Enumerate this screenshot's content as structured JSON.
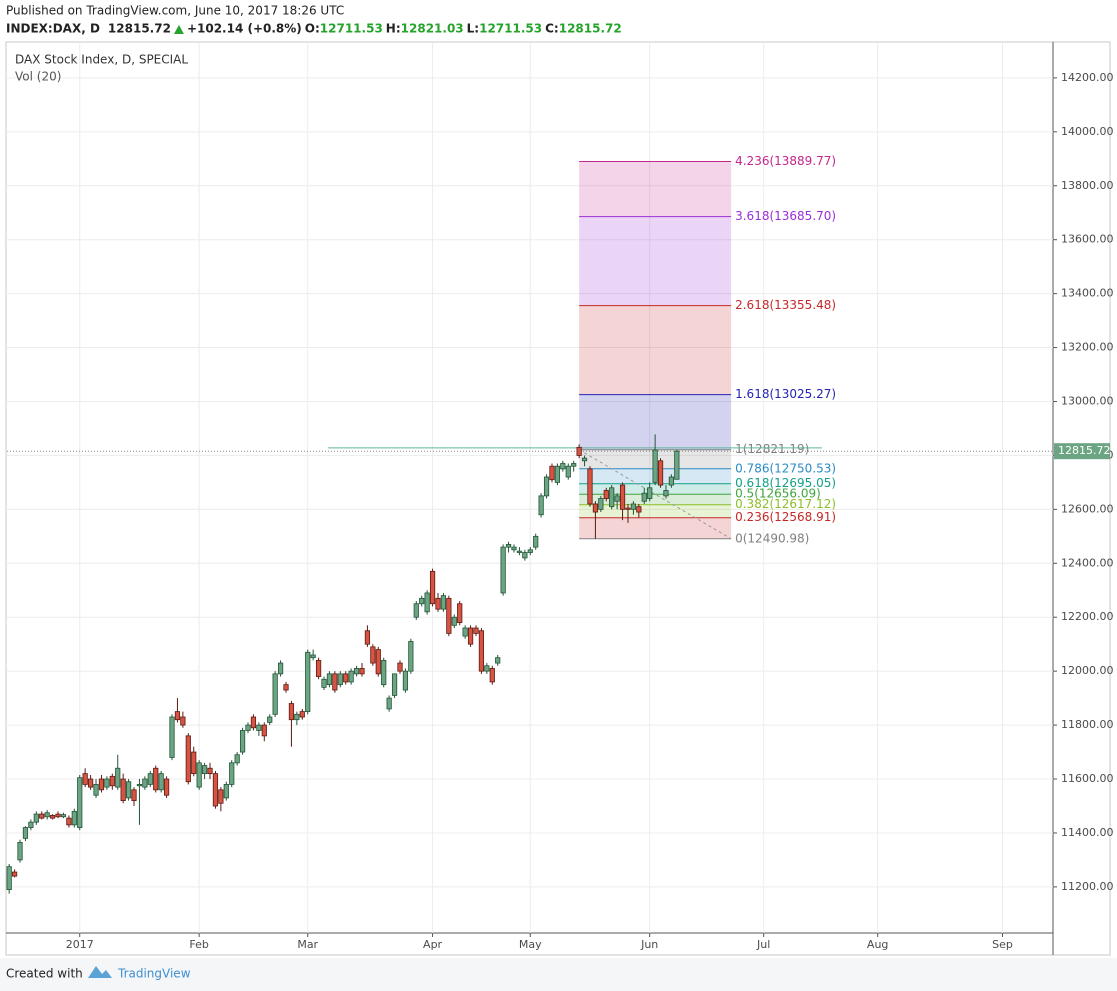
{
  "header": {
    "published": "Published on TradingView.com, June 10, 2017 18:26 UTC",
    "symbol": "INDEX:DAX, D",
    "price": "12815.72",
    "change": "+102.14 (+0.8%)",
    "ohlc": [
      {
        "label": "O:",
        "value": "12711.53"
      },
      {
        "label": "H:",
        "value": "12821.03"
      },
      {
        "label": "L:",
        "value": "12711.53"
      },
      {
        "label": "C:",
        "value": "12815.72"
      }
    ]
  },
  "footer": {
    "created": "Created with",
    "brand": "TradingView"
  },
  "chart_data": {
    "type": "candlestick",
    "title": "DAX Stock Index, D, SPECIAL",
    "subtitle": "Vol (20)",
    "x": [
      0,
      1,
      2,
      3,
      4,
      5,
      6,
      7,
      8,
      9,
      10,
      11,
      12,
      13,
      14,
      15,
      16,
      17,
      18,
      19,
      20,
      21,
      22,
      23,
      24,
      25,
      26,
      27,
      28,
      29,
      30,
      31,
      32,
      33,
      34,
      35,
      36,
      37,
      38,
      39,
      40,
      41,
      42,
      43,
      44,
      45,
      46,
      47,
      48,
      49,
      50,
      51,
      52,
      53,
      54,
      55,
      56,
      57,
      58,
      59,
      60,
      61,
      62,
      63,
      64,
      65,
      66,
      67,
      68,
      69,
      70,
      71,
      72,
      73,
      74,
      75,
      76,
      77,
      78,
      79,
      80,
      81,
      82,
      83,
      84,
      85,
      86,
      87,
      88,
      89,
      90,
      91,
      92,
      93,
      94,
      95,
      96,
      97,
      98,
      99,
      100,
      101,
      102,
      103,
      104,
      105,
      106,
      107,
      108,
      109,
      110,
      111,
      112,
      113,
      114,
      115,
      116,
      117,
      118,
      119,
      120,
      121,
      122,
      123
    ],
    "open": [
      11190,
      11255,
      11300,
      11380,
      11420,
      11440,
      11470,
      11460,
      11465,
      11470,
      11460,
      11455,
      11430,
      11420,
      11620,
      11600,
      11540,
      11600,
      11570,
      11610,
      11570,
      11600,
      11530,
      11560,
      11575,
      11570,
      11580,
      11640,
      11560,
      11600,
      11680,
      11850,
      11830,
      11760,
      11700,
      11570,
      11620,
      11640,
      11620,
      11560,
      11530,
      11580,
      11660,
      11700,
      11780,
      11830,
      11780,
      11800,
      11810,
      11840,
      11990,
      11950,
      11880,
      11820,
      11850,
      11850,
      12050,
      12040,
      11940,
      11950,
      11990,
      11950,
      11990,
      11960,
      11990,
      12010,
      12150,
      12090,
      12080,
      11950,
      11860,
      11910,
      12030,
      11930,
      12000,
      12200,
      12250,
      12220,
      12370,
      12270,
      12230,
      12270,
      12170,
      12250,
      12130,
      12160,
      12160,
      12150,
      12000,
      12010,
      12030,
      12290,
      12460,
      12450,
      12440,
      12420,
      12440,
      12460,
      12580,
      12650,
      12760,
      12700,
      12750,
      12720,
      12760,
      12830,
      12780,
      12750,
      12620,
      12600,
      12670,
      12610,
      12630,
      12690,
      12605,
      12600,
      12610,
      12630,
      12640,
      12700,
      12780,
      12650,
      12690,
      12711.53
    ],
    "high": [
      11285,
      11265,
      11375,
      11425,
      11450,
      11480,
      11480,
      11485,
      11470,
      11480,
      11475,
      11465,
      11490,
      11615,
      11640,
      11615,
      11600,
      11615,
      11610,
      11620,
      11690,
      11620,
      11600,
      11570,
      11600,
      11610,
      11630,
      11650,
      11630,
      11610,
      11840,
      11900,
      11850,
      11770,
      11720,
      11670,
      11660,
      11660,
      11630,
      11570,
      11590,
      11670,
      11700,
      11790,
      11810,
      11840,
      11810,
      11810,
      11840,
      12000,
      12040,
      11960,
      11890,
      11850,
      11860,
      12080,
      12080,
      12050,
      11980,
      12000,
      12000,
      12000,
      12000,
      12010,
      12020,
      12030,
      12170,
      12100,
      12090,
      12050,
      11910,
      11990,
      12040,
      12010,
      12120,
      12260,
      12280,
      12300,
      12380,
      12290,
      12290,
      12280,
      12210,
      12260,
      12170,
      12170,
      12170,
      12160,
      12030,
      12020,
      12060,
      12470,
      12480,
      12470,
      12460,
      12450,
      12460,
      12510,
      12660,
      12730,
      12770,
      12770,
      12780,
      12770,
      12780,
      12841,
      12800,
      12760,
      12630,
      12650,
      12680,
      12690,
      12660,
      12700,
      12620,
      12630,
      12620,
      12680,
      12700,
      12878,
      12790,
      12690,
      12730,
      12821.03
    ],
    "low": [
      11175,
      11235,
      11290,
      11370,
      11410,
      11430,
      11450,
      11450,
      11450,
      11455,
      11455,
      11420,
      11420,
      11410,
      11570,
      11560,
      11530,
      11550,
      11560,
      11560,
      11560,
      11510,
      11520,
      11500,
      11430,
      11560,
      11570,
      11550,
      11550,
      11530,
      11670,
      11810,
      11790,
      11580,
      11610,
      11560,
      11600,
      11600,
      11490,
      11480,
      11520,
      11570,
      11650,
      11690,
      11770,
      11780,
      11760,
      11740,
      11800,
      11830,
      11980,
      11920,
      11720,
      11800,
      11820,
      11840,
      12040,
      11970,
      11930,
      11940,
      11920,
      11940,
      11950,
      11950,
      11980,
      11980,
      12090,
      12020,
      11980,
      11940,
      11850,
      11900,
      11990,
      11920,
      11990,
      12190,
      12240,
      12210,
      12240,
      12220,
      12220,
      12130,
      12160,
      12170,
      12120,
      12090,
      12130,
      11990,
      11990,
      11950,
      12020,
      12280,
      12440,
      12440,
      12430,
      12410,
      12430,
      12450,
      12570,
      12640,
      12700,
      12690,
      12740,
      12710,
      12740,
      12790,
      12760,
      12610,
      12491,
      12590,
      12630,
      12600,
      12600,
      12560,
      12550,
      12580,
      12570,
      12620,
      12630,
      12690,
      12680,
      12640,
      12680,
      12711.53
    ],
    "close": [
      11275,
      11240,
      11365,
      11420,
      11440,
      11470,
      11455,
      11475,
      11455,
      11460,
      11468,
      11430,
      11480,
      11605,
      11580,
      11570,
      11580,
      11560,
      11600,
      11575,
      11640,
      11520,
      11590,
      11520,
      11580,
      11600,
      11620,
      11560,
      11620,
      11540,
      11830,
      11820,
      11800,
      11590,
      11620,
      11660,
      11650,
      11620,
      11500,
      11510,
      11580,
      11660,
      11690,
      11780,
      11800,
      11790,
      11800,
      11760,
      11830,
      11990,
      12030,
      11930,
      11820,
      11840,
      11830,
      12070,
      12060,
      11980,
      11970,
      11990,
      11930,
      11990,
      11960,
      12000,
      12010,
      11990,
      12100,
      12030,
      11990,
      12040,
      11900,
      11990,
      12000,
      12000,
      12110,
      12250,
      12270,
      12290,
      12250,
      12230,
      12280,
      12140,
      12200,
      12180,
      12160,
      12100,
      12140,
      12000,
      12020,
      11960,
      12050,
      12460,
      12470,
      12460,
      12445,
      12440,
      12450,
      12500,
      12650,
      12720,
      12710,
      12760,
      12770,
      12760,
      12770,
      12800,
      12790,
      12620,
      12590,
      12640,
      12640,
      12680,
      12650,
      12600,
      12600,
      12620,
      12590,
      12660,
      12680,
      12820,
      12690,
      12670,
      12720,
      12815.72
    ],
    "up_color": "#6ba583",
    "down_color": "#d75442",
    "xlim": [
      -0.4,
      192.3
    ],
    "ylim": [
      11029,
      14322
    ],
    "xticks": [
      {
        "value": 13,
        "label": "2017"
      },
      {
        "value": 35,
        "label": "Feb"
      },
      {
        "value": 55,
        "label": "Mar"
      },
      {
        "value": 78,
        "label": "Apr"
      },
      {
        "value": 96,
        "label": "May"
      },
      {
        "value": 118,
        "label": "Jun"
      },
      {
        "value": 139,
        "label": "Jul"
      },
      {
        "value": 160,
        "label": "Aug"
      },
      {
        "value": 183,
        "label": "Sep"
      }
    ],
    "yticks": [
      {
        "value": 11200,
        "label": "11200.00"
      },
      {
        "value": 11400,
        "label": "11400.00"
      },
      {
        "value": 11600,
        "label": "11600.00"
      },
      {
        "value": 11800,
        "label": "11800.00"
      },
      {
        "value": 12000,
        "label": "12000.00"
      },
      {
        "value": 12200,
        "label": "12200.00"
      },
      {
        "value": 12400,
        "label": "12400.00"
      },
      {
        "value": 12600,
        "label": "12600.00"
      },
      {
        "value": 12800,
        "label": "12800.00"
      },
      {
        "value": 13000,
        "label": "13000.00"
      },
      {
        "value": 13200,
        "label": "13200.00"
      },
      {
        "value": 13400,
        "label": "13400.00"
      },
      {
        "value": 13600,
        "label": "13600.00"
      },
      {
        "value": 13800,
        "label": "13800.00"
      },
      {
        "value": 14000,
        "label": "14000.00"
      },
      {
        "value": 14200,
        "label": "14200.00"
      }
    ],
    "grid": true,
    "last_price": 12815.72,
    "hline": {
      "price": 12828,
      "x": [
        58.7,
        149.7
      ],
      "color": "#5fb3a0"
    },
    "fib_x": [
      105,
      133
    ],
    "levels": [
      {
        "price": 13889.77,
        "label": "4.236(13889.77)",
        "color": "#c2268f"
      },
      {
        "price": 13685.7,
        "label": "3.618(13685.70)",
        "color": "#9b2fd6"
      },
      {
        "price": 13355.48,
        "label": "2.618(13355.48)",
        "color": "#c62828"
      },
      {
        "price": 13025.27,
        "label": "1.618(13025.27)",
        "color": "#2424b5"
      },
      {
        "price": 12821.19,
        "label": "1(12821.19)",
        "color": "#808080"
      },
      {
        "price": 12750.53,
        "label": "0.786(12750.53)",
        "color": "#2b8cc4"
      },
      {
        "price": 12695.05,
        "label": "0.618(12695.05)",
        "color": "#12a08a"
      },
      {
        "price": 12656.09,
        "label": "0.5(12656.09)",
        "color": "#3fa63f"
      },
      {
        "price": 12617.12,
        "label": "0.382(12617.12)",
        "color": "#8cbf26"
      },
      {
        "price": 12568.91,
        "label": "0.236(12568.91)",
        "color": "#c62828"
      },
      {
        "price": 12490.98,
        "label": "0(12490.98)",
        "color": "#808080"
      }
    ]
  }
}
